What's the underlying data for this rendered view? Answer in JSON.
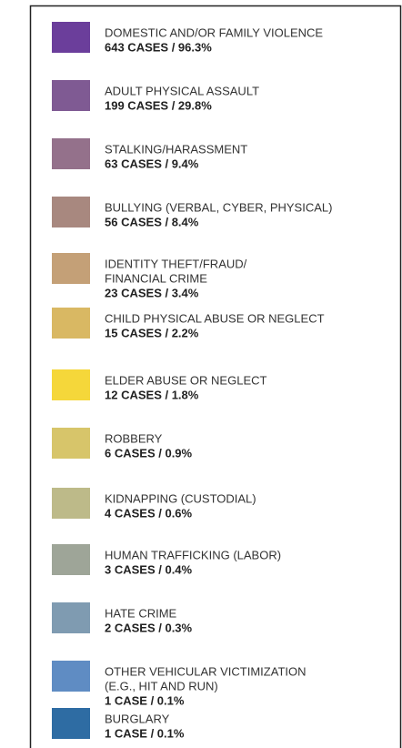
{
  "items": [
    {
      "label": [
        "DOMESTIC AND/OR FAMILY VIOLENCE"
      ],
      "stat": "643 CASES / 96.3%",
      "color": "#6b3e9b"
    },
    {
      "label": [
        "ADULT PHYSICAL ASSAULT"
      ],
      "stat": "199 CASES / 29.8%",
      "color": "#7f5a93"
    },
    {
      "label": [
        "STALKING/HARASSMENT"
      ],
      "stat": "63 CASES / 9.4%",
      "color": "#94718b"
    },
    {
      "label": [
        "BULLYING (VERBAL, CYBER, PHYSICAL)"
      ],
      "stat": "56 CASES / 8.4%",
      "color": "#a8887f"
    },
    {
      "label": [
        "IDENTITY THEFT/FRAUD/",
        "FINANCIAL CRIME"
      ],
      "stat": "23 CASES / 3.4%",
      "color": "#c4a077"
    },
    {
      "label": [
        "CHILD PHYSICAL ABUSE OR NEGLECT"
      ],
      "stat": "15 CASES / 2.2%",
      "color": "#d9b863"
    },
    {
      "label": [
        "ELDER ABUSE OR NEGLECT"
      ],
      "stat": "12 CASES / 1.8%",
      "color": "#f5d73a"
    },
    {
      "label": [
        "ROBBERY"
      ],
      "stat": "6 CASES / 0.9%",
      "color": "#d7c56a"
    },
    {
      "label": [
        "KIDNAPPING (CUSTODIAL)"
      ],
      "stat": "4 CASES / 0.6%",
      "color": "#bdba89"
    },
    {
      "label": [
        "HUMAN TRAFFICKING (LABOR)"
      ],
      "stat": "3 CASES / 0.4%",
      "color": "#9ea598"
    },
    {
      "label": [
        "HATE CRIME"
      ],
      "stat": "2 CASES / 0.3%",
      "color": "#7f9bb1"
    },
    {
      "label": [
        "OTHER VEHICULAR VICTIMIZATION",
        "(E.G., HIT AND RUN)"
      ],
      "stat": "1 CASE / 0.1%",
      "color": "#5f8cc3"
    },
    {
      "label": [
        "BURGLARY"
      ],
      "stat": "1 CASE / 0.1%",
      "color": "#2e6ca3"
    }
  ]
}
